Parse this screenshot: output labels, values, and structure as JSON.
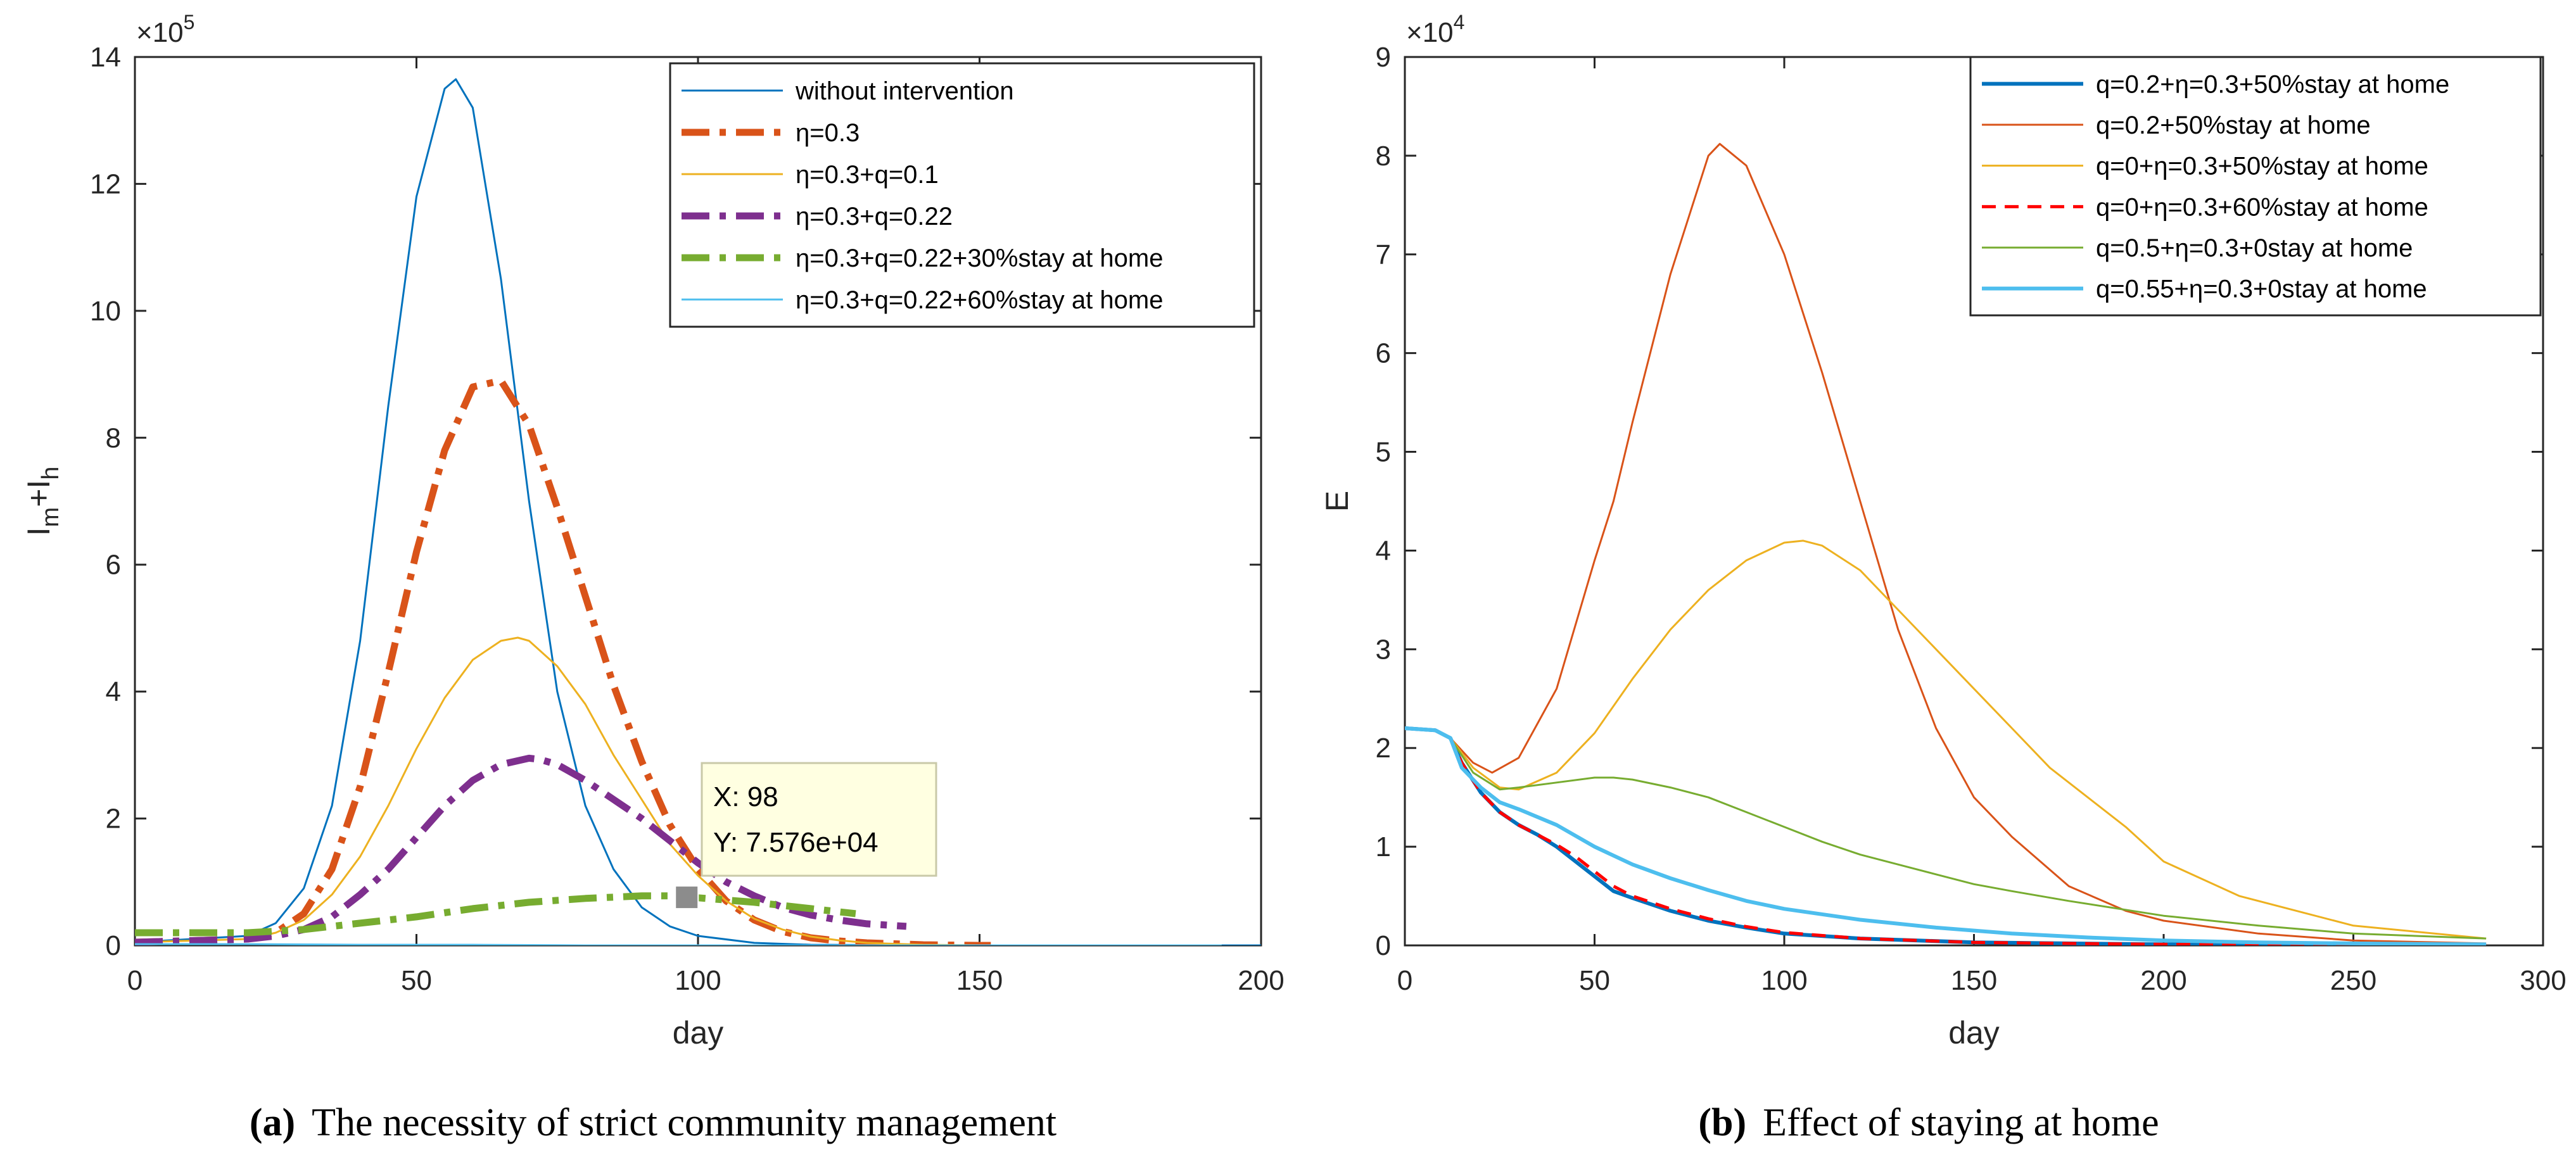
{
  "chart_data": [
    {
      "type": "line",
      "caption_tag": "(a)",
      "caption": "The necessity of strict community management",
      "xlabel": "day",
      "ylabel": "I",
      "ylabel_sub1": "m",
      "ylabel_mid": "+I",
      "ylabel_sub2": "h",
      "exponent_label": "×10",
      "exponent_power": "5",
      "xlim": [
        0,
        200
      ],
      "ylim": [
        0,
        14
      ],
      "xticks": [
        0,
        50,
        100,
        150,
        200
      ],
      "yticks": [
        0,
        2,
        4,
        6,
        8,
        10,
        12,
        14
      ],
      "xtick_labels": [
        "0",
        "50",
        "100",
        "150",
        "200"
      ],
      "ytick_labels": [
        "0",
        "2",
        "4",
        "6",
        "8",
        "10",
        "12",
        "14"
      ],
      "grid": false,
      "legend_position": "top-right",
      "datatip": {
        "x": 98,
        "y": 0.7576,
        "x_label": "X: 98",
        "y_label": "Y: 7.576e+04"
      },
      "series": [
        {
          "name": "without intervention",
          "color": "#0072BD",
          "width": 3,
          "dash": "",
          "x": [
            0,
            20,
            25,
            30,
            35,
            40,
            45,
            50,
            55,
            57,
            60,
            65,
            70,
            75,
            80,
            85,
            90,
            95,
            100,
            110,
            120,
            150,
            200
          ],
          "y": [
            0.05,
            0.15,
            0.35,
            0.9,
            2.2,
            4.8,
            8.5,
            11.8,
            13.5,
            13.65,
            13.2,
            10.5,
            7.0,
            4.0,
            2.2,
            1.2,
            0.6,
            0.3,
            0.15,
            0.04,
            0.01,
            0,
            0
          ]
        },
        {
          "name": "η=0.3",
          "color": "#D95319",
          "width": 11,
          "dash": "44,16,10,16",
          "x": [
            0,
            20,
            25,
            30,
            35,
            40,
            45,
            50,
            55,
            60,
            65,
            70,
            75,
            80,
            85,
            90,
            95,
            100,
            105,
            110,
            115,
            120,
            125,
            130,
            140,
            150,
            152
          ],
          "y": [
            0.05,
            0.1,
            0.2,
            0.5,
            1.2,
            2.5,
            4.3,
            6.2,
            7.8,
            8.8,
            8.9,
            8.2,
            6.9,
            5.5,
            4.1,
            2.9,
            1.9,
            1.2,
            0.7,
            0.4,
            0.22,
            0.12,
            0.07,
            0.04,
            0.01,
            0,
            0
          ]
        },
        {
          "name": "η=0.3+q=0.1",
          "color": "#EDB120",
          "width": 3,
          "dash": "",
          "x": [
            0,
            20,
            25,
            30,
            35,
            40,
            45,
            50,
            55,
            60,
            65,
            68,
            70,
            75,
            80,
            85,
            90,
            95,
            100,
            105,
            110,
            115,
            120,
            125,
            130,
            140,
            150
          ],
          "y": [
            0.05,
            0.1,
            0.2,
            0.4,
            0.8,
            1.4,
            2.2,
            3.1,
            3.9,
            4.5,
            4.8,
            4.85,
            4.8,
            4.4,
            3.8,
            3.0,
            2.3,
            1.6,
            1.1,
            0.7,
            0.42,
            0.25,
            0.14,
            0.08,
            0.04,
            0.01,
            0
          ]
        },
        {
          "name": "η=0.3+q=0.22",
          "color": "#7E2F8E",
          "width": 11,
          "dash": "44,16,10,16",
          "x": [
            0,
            20,
            25,
            30,
            35,
            40,
            45,
            50,
            55,
            60,
            65,
            70,
            72,
            75,
            80,
            85,
            90,
            95,
            100,
            105,
            110,
            115,
            120,
            125,
            130,
            137
          ],
          "y": [
            0.05,
            0.1,
            0.15,
            0.25,
            0.45,
            0.8,
            1.2,
            1.7,
            2.2,
            2.6,
            2.85,
            2.95,
            2.93,
            2.85,
            2.6,
            2.3,
            2.0,
            1.65,
            1.3,
            1.0,
            0.78,
            0.6,
            0.48,
            0.4,
            0.34,
            0.3
          ]
        },
        {
          "name": "η=0.3+q=0.22+30%stay at home",
          "color": "#77AC30",
          "width": 11,
          "dash": "44,16,10,16",
          "x": [
            0,
            20,
            30,
            40,
            50,
            60,
            70,
            80,
            90,
            95,
            100,
            110,
            120,
            128
          ],
          "y": [
            0.2,
            0.2,
            0.25,
            0.35,
            0.45,
            0.58,
            0.68,
            0.74,
            0.78,
            0.78,
            0.75,
            0.68,
            0.58,
            0.5
          ]
        },
        {
          "name": "η=0.3+q=0.22+60%stay at home",
          "color": "#4DBEEE",
          "width": 3,
          "dash": "",
          "x": [
            0,
            20,
            40,
            60,
            80,
            100,
            150,
            193
          ],
          "y": [
            0.02,
            0.02,
            0.01,
            0.01,
            0,
            0,
            0,
            0
          ]
        }
      ]
    },
    {
      "type": "line",
      "caption_tag": "(b)",
      "caption": "Effect of staying at home",
      "xlabel": "day",
      "ylabel": "E",
      "exponent_label": "×10",
      "exponent_power": "4",
      "xlim": [
        0,
        300
      ],
      "ylim": [
        0,
        9
      ],
      "xticks": [
        0,
        50,
        100,
        150,
        200,
        250,
        300
      ],
      "yticks": [
        0,
        1,
        2,
        3,
        4,
        5,
        6,
        7,
        8,
        9
      ],
      "xtick_labels": [
        "0",
        "50",
        "100",
        "150",
        "200",
        "250",
        "300"
      ],
      "ytick_labels": [
        "0",
        "1",
        "2",
        "3",
        "4",
        "5",
        "6",
        "7",
        "8",
        "9"
      ],
      "grid": false,
      "legend_position": "top-right",
      "series": [
        {
          "name": "q=0.2+η=0.3+50%stay at home",
          "color": "#0072BD",
          "width": 6,
          "dash": "",
          "x": [
            0,
            8,
            12,
            15,
            20,
            25,
            30,
            35,
            40,
            45,
            50,
            55,
            60,
            70,
            80,
            90,
            100,
            120,
            150,
            200,
            250,
            285
          ],
          "y": [
            2.2,
            2.18,
            2.1,
            1.85,
            1.55,
            1.35,
            1.22,
            1.12,
            1.0,
            0.85,
            0.7,
            0.55,
            0.48,
            0.35,
            0.25,
            0.18,
            0.12,
            0.07,
            0.03,
            0.01,
            0.005,
            0
          ]
        },
        {
          "name": "q=0.2+50%stay at home",
          "color": "#D95319",
          "width": 3,
          "dash": "",
          "x": [
            0,
            8,
            12,
            18,
            23,
            30,
            40,
            50,
            55,
            60,
            70,
            80,
            83,
            90,
            100,
            110,
            120,
            130,
            140,
            150,
            160,
            175,
            190,
            200,
            225,
            250,
            285
          ],
          "y": [
            2.2,
            2.18,
            2.1,
            1.85,
            1.75,
            1.9,
            2.6,
            3.9,
            4.5,
            5.3,
            6.8,
            8.0,
            8.12,
            7.9,
            7.0,
            5.8,
            4.5,
            3.2,
            2.2,
            1.5,
            1.1,
            0.6,
            0.35,
            0.25,
            0.12,
            0.05,
            0.02
          ]
        },
        {
          "name": "q=0+η=0.3+50%stay at home",
          "color": "#EDB120",
          "width": 3,
          "dash": "",
          "x": [
            0,
            8,
            12,
            18,
            25,
            30,
            40,
            50,
            60,
            70,
            80,
            90,
            100,
            105,
            110,
            120,
            130,
            140,
            150,
            160,
            170,
            180,
            190,
            200,
            220,
            250,
            285
          ],
          "y": [
            2.2,
            2.18,
            2.1,
            1.8,
            1.6,
            1.58,
            1.75,
            2.15,
            2.7,
            3.2,
            3.6,
            3.9,
            4.08,
            4.1,
            4.05,
            3.8,
            3.4,
            3.0,
            2.6,
            2.2,
            1.8,
            1.5,
            1.2,
            0.85,
            0.5,
            0.2,
            0.07
          ]
        },
        {
          "name": "q=0+η=0.3+60%stay at home",
          "color": "#FF0000",
          "width": 5,
          "dash": "22,14",
          "x": [
            0,
            8,
            12,
            15,
            20,
            25,
            30,
            35,
            40,
            45,
            50,
            55,
            60,
            70,
            80,
            90,
            100,
            120,
            150,
            200,
            250,
            285
          ],
          "y": [
            2.2,
            2.18,
            2.1,
            1.85,
            1.55,
            1.35,
            1.22,
            1.12,
            1.02,
            0.9,
            0.75,
            0.6,
            0.5,
            0.37,
            0.27,
            0.19,
            0.13,
            0.07,
            0.03,
            0.01,
            0.005,
            0
          ]
        },
        {
          "name": "q=0.5+η=0.3+0stay at home",
          "color": "#77AC30",
          "width": 3,
          "dash": "",
          "x": [
            0,
            8,
            12,
            18,
            25,
            30,
            40,
            50,
            55,
            60,
            70,
            80,
            90,
            100,
            110,
            120,
            130,
            140,
            150,
            160,
            175,
            200,
            225,
            250,
            285
          ],
          "y": [
            2.2,
            2.18,
            2.1,
            1.75,
            1.58,
            1.6,
            1.65,
            1.7,
            1.7,
            1.68,
            1.6,
            1.5,
            1.35,
            1.2,
            1.05,
            0.92,
            0.82,
            0.72,
            0.62,
            0.55,
            0.45,
            0.3,
            0.2,
            0.12,
            0.07
          ]
        },
        {
          "name": "q=0.55+η=0.3+0stay at home",
          "color": "#4DBEEE",
          "width": 6,
          "dash": "",
          "x": [
            0,
            8,
            12,
            15,
            20,
            25,
            30,
            40,
            50,
            60,
            70,
            80,
            90,
            100,
            120,
            140,
            160,
            180,
            200,
            225,
            250,
            285
          ],
          "y": [
            2.2,
            2.18,
            2.1,
            1.8,
            1.6,
            1.45,
            1.38,
            1.22,
            1.0,
            0.82,
            0.68,
            0.56,
            0.45,
            0.37,
            0.26,
            0.18,
            0.12,
            0.08,
            0.05,
            0.03,
            0.02,
            0.01
          ]
        }
      ]
    }
  ]
}
